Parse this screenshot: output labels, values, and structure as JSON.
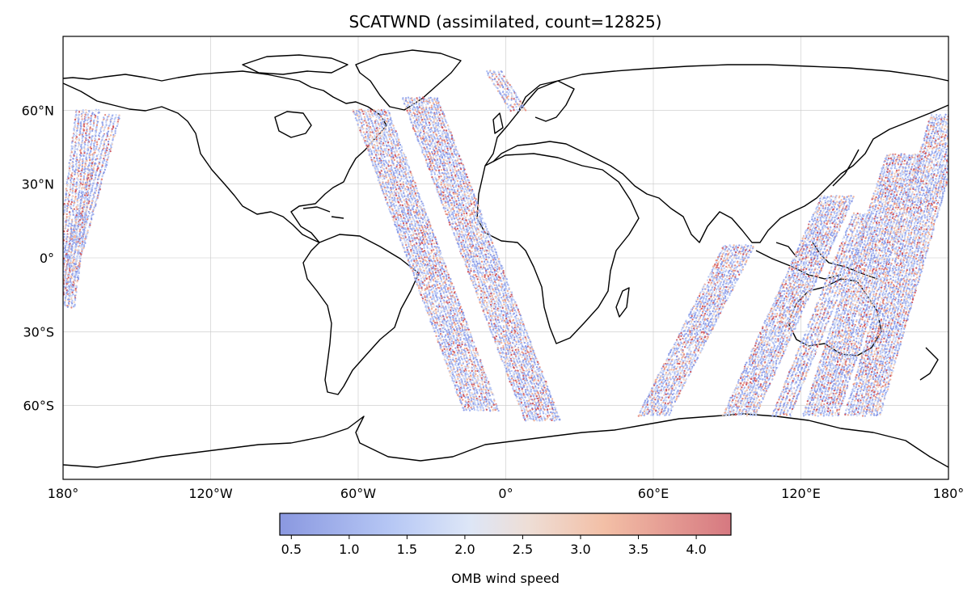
{
  "chart_data": {
    "type": "scatter",
    "title": "SCATWND (assimilated, count=12825)",
    "projection": "PlateCarree",
    "xlim": [
      -180,
      180
    ],
    "ylim": [
      -90,
      90
    ],
    "x_ticks": [
      -180,
      -120,
      -60,
      0,
      60,
      120,
      180
    ],
    "x_tick_labels": [
      "180°",
      "120°W",
      "60°W",
      "0°",
      "60°E",
      "120°E",
      "180°"
    ],
    "y_ticks": [
      60,
      30,
      0,
      -30,
      -60
    ],
    "y_tick_labels": [
      "60°N",
      "30°N",
      "0°",
      "30°S",
      "60°S"
    ],
    "grid": true,
    "colormap": "coolwarm",
    "colors": {
      "low": "#3b4cc0",
      "mid": "#dddddd",
      "high": "#b40426"
    },
    "colorbar": {
      "label": "OMB wind speed",
      "range": [
        0.4,
        4.3
      ],
      "ticks": [
        0.5,
        1.0,
        1.5,
        2.0,
        2.5,
        3.0,
        3.5,
        4.0
      ],
      "tick_labels": [
        "0.5",
        "1.0",
        "1.5",
        "2.0",
        "2.5",
        "3.0",
        "3.5",
        "4.0"
      ]
    },
    "swaths": [
      {
        "lon_start": -170,
        "lon_end": -180,
        "lat_min": -20,
        "lat_max": 60,
        "width": 9
      },
      {
        "lon_start": -160,
        "lon_end": -180,
        "lat_min": -15,
        "lat_max": 58,
        "width": 6
      },
      {
        "lon_start": -55,
        "lon_end": -10,
        "lat_min": -62,
        "lat_max": 60,
        "width": 14
      },
      {
        "lon_start": -35,
        "lon_end": 15,
        "lat_min": -66,
        "lat_max": 65,
        "width": 14
      },
      {
        "lon_start": -5,
        "lon_end": 5,
        "lat_min": 60,
        "lat_max": 76,
        "width": 6
      },
      {
        "lon_start": 95,
        "lon_end": 60,
        "lat_min": -64,
        "lat_max": 5,
        "width": 12
      },
      {
        "lon_start": 135,
        "lon_end": 95,
        "lat_min": -64,
        "lat_max": 25,
        "width": 13
      },
      {
        "lon_start": 145,
        "lon_end": 112,
        "lat_min": -64,
        "lat_max": 18,
        "width": 7
      },
      {
        "lon_start": 162,
        "lon_end": 128,
        "lat_min": -64,
        "lat_max": 42,
        "width": 14
      },
      {
        "lon_start": 180,
        "lon_end": 145,
        "lat_min": -64,
        "lat_max": 58,
        "width": 14
      }
    ]
  }
}
